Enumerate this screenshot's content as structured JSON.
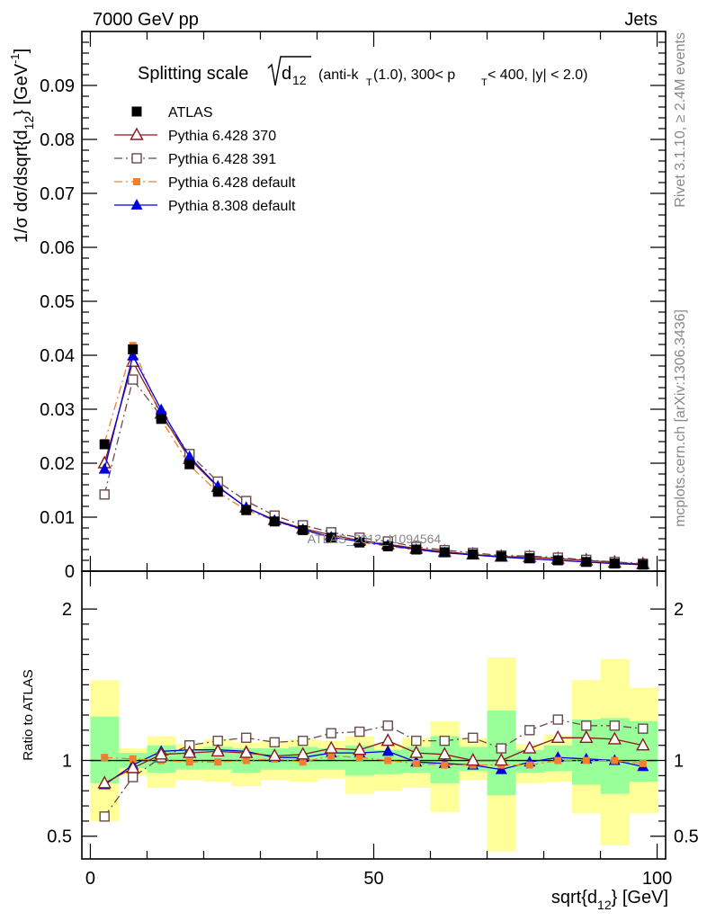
{
  "header": {
    "left": "7000 GeV pp",
    "right": "Jets"
  },
  "side": {
    "rivet": "Rivet 3.1.10, ≥ 2.4M events",
    "mcplots": "mcplots.cern.ch [arXiv:1306.3436]"
  },
  "watermark": "ATLAS_2012_I1094564",
  "chart_data": [
    {
      "type": "line",
      "title": "Splitting scale √d12 (anti-kT(1.0), 300< pT < 400, |y| < 2.0)",
      "title_parts": {
        "prefix": "Splitting scale",
        "var": "d",
        "var_sub": "12",
        "p1": "(anti-k",
        "p1_sub": "T",
        "p2": "(1.0), 300< p",
        "p2_sub": "T",
        "p3": " < 400, |y| < 2.0)"
      },
      "ylabel": "1/σ dσ/dsqrt{d12} [GeV-1]",
      "ylabel_parts": {
        "a": "1/σ dσ/dsqrt{d",
        "a_sub": "12",
        "b": "} [GeV",
        "b_sup": "-1",
        "c": "]"
      },
      "xlim": [
        -1.5,
        101.5
      ],
      "ylim": [
        0,
        0.1
      ],
      "yticks": [
        {
          "v": 0,
          "label": "0"
        },
        {
          "v": 0.01,
          "label": "0.01"
        },
        {
          "v": 0.02,
          "label": "0.02"
        },
        {
          "v": 0.03,
          "label": "0.03"
        },
        {
          "v": 0.04,
          "label": "0.04"
        },
        {
          "v": 0.05,
          "label": "0.05"
        },
        {
          "v": 0.06,
          "label": "0.06"
        },
        {
          "v": 0.07,
          "label": "0.07"
        },
        {
          "v": 0.08,
          "label": "0.08"
        },
        {
          "v": 0.09,
          "label": "0.09"
        }
      ],
      "x": [
        2.5,
        7.5,
        12.5,
        17.5,
        22.5,
        27.5,
        32.5,
        37.5,
        42.5,
        47.5,
        52.5,
        57.5,
        62.5,
        67.5,
        72.5,
        77.5,
        82.5,
        87.5,
        92.5,
        97.5
      ],
      "legend_placement": "top-left",
      "series": [
        {
          "name": "ATLAS",
          "color": "#000000",
          "marker": "square-filled",
          "line": "none",
          "values": [
            0.0235,
            0.0411,
            0.0282,
            0.0198,
            0.0147,
            0.0113,
            0.0092,
            0.0076,
            0.0062,
            0.0053,
            0.0046,
            0.004,
            0.0035,
            0.0031,
            0.0027,
            0.0024,
            0.002,
            0.0017,
            0.0014,
            0.0012
          ]
        },
        {
          "name": "Pythia 6.428 370",
          "color": "#8B1A1A",
          "marker": "triangle-open",
          "line": "solid",
          "values": [
            0.02,
            0.0388,
            0.0292,
            0.0208,
            0.0156,
            0.0118,
            0.0095,
            0.0079,
            0.0067,
            0.0057,
            0.005,
            0.0042,
            0.0036,
            0.0031,
            0.0027,
            0.0026,
            0.0023,
            0.002,
            0.0016,
            0.0013
          ]
        },
        {
          "name": "Pythia 6.428 391",
          "color": "#6B4A4A",
          "marker": "square-open",
          "line": "dash-dot",
          "values": [
            0.0142,
            0.0355,
            0.0287,
            0.0217,
            0.0166,
            0.013,
            0.0103,
            0.0085,
            0.0072,
            0.0062,
            0.0055,
            0.0045,
            0.0039,
            0.0034,
            0.0029,
            0.0028,
            0.0025,
            0.0021,
            0.0017,
            0.0014
          ]
        },
        {
          "name": "Pythia 6.428 default",
          "color": "#F07F2E",
          "marker": "square-filled-small",
          "line": "dash-dot",
          "values": [
            0.0238,
            0.0418,
            0.0281,
            0.0196,
            0.0146,
            0.0113,
            0.0094,
            0.0075,
            0.0064,
            0.0054,
            0.0046,
            0.0039,
            0.0034,
            0.003,
            0.0026,
            0.0023,
            0.002,
            0.0017,
            0.0014,
            0.0012
          ]
        },
        {
          "name": "Pythia 8.308 default",
          "color": "#0000E0",
          "marker": "triangle-filled",
          "line": "solid",
          "values": [
            0.0189,
            0.0399,
            0.0299,
            0.0212,
            0.0157,
            0.0118,
            0.0094,
            0.0077,
            0.0063,
            0.0055,
            0.0048,
            0.004,
            0.0034,
            0.003,
            0.0026,
            0.0023,
            0.002,
            0.0017,
            0.0014,
            0.0012
          ]
        }
      ]
    },
    {
      "type": "line",
      "ylabel": "Ratio to ATLAS",
      "xlabel": "sqrt{d12} [GeV]",
      "xlabel_parts": {
        "a": "sqrt{d",
        "a_sub": "12",
        "b": "} [GeV]"
      },
      "xlim": [
        -1.5,
        101.5
      ],
      "ylim": [
        0.35,
        2.25
      ],
      "reference_line": 1,
      "xticks": [
        {
          "v": 0,
          "label": "0"
        },
        {
          "v": 50,
          "label": "50"
        },
        {
          "v": 100,
          "label": "100"
        }
      ],
      "yticks": [
        {
          "v": 0.5,
          "label": "0.5"
        },
        {
          "v": 1,
          "label": "1"
        },
        {
          "v": 2,
          "label": "2"
        }
      ],
      "x": [
        2.5,
        7.5,
        12.5,
        17.5,
        22.5,
        27.5,
        32.5,
        37.5,
        42.5,
        47.5,
        52.5,
        57.5,
        62.5,
        67.5,
        72.5,
        77.5,
        82.5,
        87.5,
        92.5,
        97.5
      ],
      "band_outer": {
        "color": "#FFFF99",
        "low": [
          0.6,
          0.9,
          0.82,
          0.87,
          0.86,
          0.83,
          0.87,
          0.86,
          0.88,
          0.78,
          0.8,
          0.82,
          0.66,
          0.87,
          0.4,
          0.85,
          0.86,
          0.65,
          0.44,
          0.65
        ],
        "high": [
          1.53,
          1.08,
          1.16,
          1.11,
          1.14,
          1.12,
          1.13,
          1.14,
          1.13,
          1.16,
          1.11,
          1.15,
          1.26,
          1.15,
          1.68,
          1.11,
          1.17,
          1.53,
          1.67,
          1.48
        ]
      },
      "band_inner": {
        "color": "#99FF99",
        "low": [
          0.85,
          0.95,
          0.92,
          0.94,
          0.94,
          0.92,
          0.94,
          0.94,
          0.94,
          0.9,
          0.91,
          0.92,
          0.85,
          0.93,
          0.77,
          0.92,
          0.93,
          0.84,
          0.78,
          0.86
        ],
        "high": [
          1.29,
          1.05,
          1.1,
          1.07,
          1.09,
          1.08,
          1.08,
          1.09,
          1.08,
          1.1,
          1.07,
          1.09,
          1.16,
          1.09,
          1.33,
          1.07,
          1.1,
          1.27,
          1.28,
          1.26
        ]
      },
      "series": [
        {
          "name": "Pythia 6.428 370",
          "color": "#8B1A1A",
          "marker": "triangle-open",
          "line": "solid",
          "values": [
            0.85,
            0.95,
            1.04,
            1.05,
            1.06,
            1.05,
            1.03,
            1.04,
            1.08,
            1.07,
            1.13,
            1.05,
            1.04,
            1.0,
            1.0,
            1.08,
            1.15,
            1.15,
            1.14,
            1.1
          ]
        },
        {
          "name": "Pythia 6.428 391",
          "color": "#6B4A4A",
          "marker": "square-open",
          "line": "dash-dot",
          "values": [
            0.63,
            0.89,
            1.02,
            1.1,
            1.13,
            1.15,
            1.12,
            1.13,
            1.18,
            1.19,
            1.23,
            1.13,
            1.13,
            1.15,
            1.08,
            1.2,
            1.27,
            1.23,
            1.23,
            1.21
          ]
        },
        {
          "name": "Pythia 6.428 default",
          "color": "#F07F2E",
          "marker": "square-filled-small",
          "line": "dash-dot",
          "values": [
            1.02,
            1.01,
            1.0,
            0.99,
            0.99,
            1.0,
            1.01,
            0.99,
            1.03,
            1.02,
            1.0,
            0.98,
            0.97,
            0.97,
            0.97,
            0.97,
            1.0,
            1.0,
            1.0,
            0.98
          ]
        },
        {
          "name": "Pythia 8.308 default",
          "color": "#0000E0",
          "marker": "triangle-filled",
          "line": "solid",
          "values": [
            0.84,
            0.97,
            1.06,
            1.07,
            1.07,
            1.06,
            1.02,
            1.02,
            1.05,
            1.05,
            1.06,
            0.99,
            0.98,
            0.97,
            0.94,
            0.99,
            1.02,
            1.01,
            1.0,
            0.96
          ]
        }
      ]
    }
  ]
}
